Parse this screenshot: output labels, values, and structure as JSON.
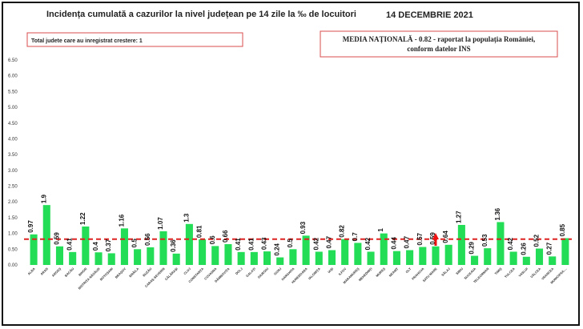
{
  "header": {
    "title": "Incidența cumulată a cazurilor la nivel județean pe 14 zile la ‰ de locuitori",
    "date": "14 DECEMBRIE 2021"
  },
  "info_box": {
    "text": "Total judete care au inregistrat crestere: 1"
  },
  "national_box": {
    "line1": "MEDIA NAȚIONALĂ  - 0.82 -  raportat la populația României,",
    "line2": "conform datelor INS"
  },
  "colors": {
    "bar": "#22dd55",
    "reference_line": "#dd2222",
    "arrow": "#ee1111"
  },
  "chart_data": {
    "type": "bar",
    "title": "Incidența cumulată a cazurilor la nivel județean pe 14 zile la ‰ de locuitori",
    "xlabel": "",
    "ylabel": "",
    "ylim": [
      0,
      6.5
    ],
    "yticks": [
      "0.00",
      "0.50",
      "1.00",
      "1.50",
      "2.00",
      "2.50",
      "3.00",
      "3.50",
      "4.00",
      "4.50",
      "5.00",
      "5.50",
      "6.00",
      "6.50"
    ],
    "grid": false,
    "reference_line": 0.82,
    "increase_marker_category": "SATU MARE",
    "categories": [
      "ALBA",
      "ARAD",
      "ARGEȘ",
      "BACĂU",
      "BIHOR",
      "BISTRIȚA NĂSĂUD",
      "BOTOȘANI",
      "BRAȘOV",
      "BRĂILA",
      "BUZĂU",
      "CARAȘ-SEVERIN",
      "CĂLĂRAȘI",
      "CLUJ",
      "CONSTANȚA",
      "COVASNA",
      "DÂMBOVIȚA",
      "DOLJ",
      "GALAȚI",
      "GIURGIU",
      "GORJ",
      "HARGHITA",
      "HUNEDOARA",
      "IALOMIȚA",
      "IAȘI",
      "ILFOV",
      "MARAMUREȘ",
      "MEHEDINȚI",
      "MUREȘ",
      "NEAMȚ",
      "OLT",
      "PRAHOVA",
      "SATU MARE",
      "SĂLAJ",
      "SIBIU",
      "SUCEAVA",
      "TELEORMAN",
      "TIMIȘ",
      "TULCEA",
      "VASLUI",
      "VÂLCEA",
      "VRANCEA",
      "MUNICIPIUL..."
    ],
    "values": [
      0.97,
      1.9,
      0.59,
      0.41,
      1.22,
      0.4,
      0.37,
      1.16,
      0.5,
      0.56,
      1.07,
      0.36,
      1.3,
      0.81,
      0.6,
      0.66,
      0.41,
      0.41,
      0.43,
      0.24,
      0.5,
      0.93,
      0.42,
      0.47,
      0.82,
      0.7,
      0.42,
      1,
      0.44,
      0.47,
      0.57,
      0.59,
      0.64,
      1.27,
      0.29,
      0.53,
      1.36,
      0.42,
      0.26,
      0.52,
      0.27,
      0.85
    ],
    "value_labels": [
      "0.97",
      "1.9",
      "0.59",
      "0.41",
      "1.22",
      "0.4",
      "0.37",
      "1.16",
      "0.5",
      "0.56",
      "1.07",
      "0.36",
      "1.3",
      "0.81",
      "0.6",
      "0.66",
      "0.41",
      "0.41",
      "0.43",
      "0.24",
      "0.5",
      "0.93",
      "0.42",
      "0.47",
      "0.82",
      "0.7",
      "0.42",
      "1",
      "0.44",
      "0.47",
      "0.57",
      "0.59",
      "0.64",
      "1.27",
      "0.29",
      "0.53",
      "1.36",
      "0.42",
      "0.26",
      "0.52",
      "0.27",
      "0.85"
    ]
  }
}
